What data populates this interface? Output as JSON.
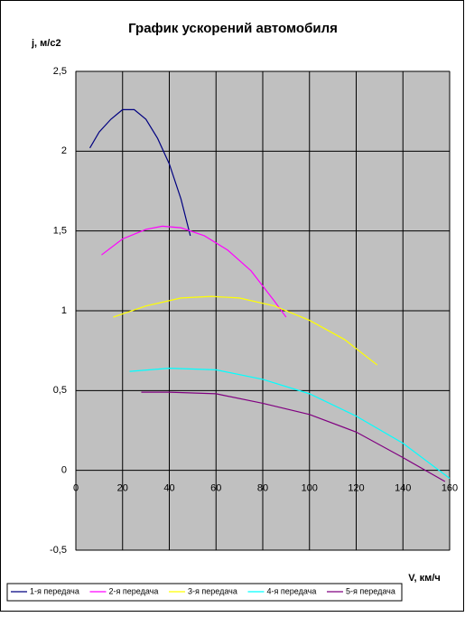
{
  "chart_data": {
    "type": "line",
    "title": "График ускорений автомобиля",
    "y_label": "j, м/с2",
    "x_label": "V, км/ч",
    "xlim": [
      0,
      160
    ],
    "xticks": [
      0,
      20,
      40,
      60,
      80,
      100,
      120,
      140,
      160
    ],
    "ylim": [
      -0.5,
      2.5
    ],
    "yticks": [
      {
        "value": -0.5,
        "label": "-0,5"
      },
      0,
      {
        "value": 0.5,
        "label": "0,5"
      },
      1,
      {
        "value": 1.5,
        "label": "1,5"
      },
      2,
      {
        "value": 2.5,
        "label": "2,5"
      }
    ],
    "grid": true,
    "background": "#c0c0c0",
    "legend": "bottom",
    "series": [
      {
        "name": "1-я передача",
        "color": "#000080",
        "x": [
          6,
          10,
          15,
          20,
          25,
          30,
          35,
          40,
          45,
          49
        ],
        "values": [
          2.02,
          2.12,
          2.2,
          2.26,
          2.26,
          2.2,
          2.08,
          1.92,
          1.7,
          1.47
        ]
      },
      {
        "name": "2-я передача",
        "color": "#ff00ff",
        "x": [
          11,
          20,
          30,
          37,
          45,
          55,
          65,
          75,
          85,
          90
        ],
        "values": [
          1.35,
          1.45,
          1.51,
          1.53,
          1.52,
          1.47,
          1.38,
          1.25,
          1.06,
          0.96
        ]
      },
      {
        "name": "3-я передача",
        "color": "#ffff00",
        "x": [
          16,
          30,
          45,
          58,
          70,
          85,
          100,
          115,
          129
        ],
        "values": [
          0.96,
          1.03,
          1.08,
          1.09,
          1.08,
          1.03,
          0.94,
          0.82,
          0.66
        ]
      },
      {
        "name": "4-я передача",
        "color": "#00ffff",
        "x": [
          23,
          40,
          60,
          80,
          100,
          120,
          140,
          160
        ],
        "values": [
          0.62,
          0.64,
          0.63,
          0.57,
          0.48,
          0.34,
          0.17,
          -0.05
        ]
      },
      {
        "name": "5-я передача",
        "color": "#800080",
        "x": [
          28,
          40,
          60,
          80,
          100,
          120,
          140,
          158
        ],
        "values": [
          0.49,
          0.49,
          0.48,
          0.42,
          0.35,
          0.24,
          0.08,
          -0.07
        ]
      }
    ]
  }
}
